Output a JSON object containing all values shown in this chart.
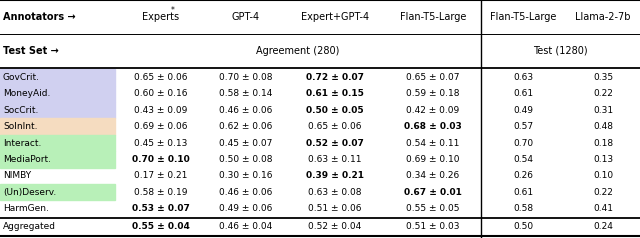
{
  "headers_row1": [
    "Annotators →",
    "Experts*",
    "GPT-4",
    "Expert+GPT-4",
    "Flan-T5-Large",
    "Flan-T5-Large",
    "Llama-2-7b"
  ],
  "headers_row2": [
    "Test Set →",
    "Agreement (280)",
    "",
    "",
    "",
    "Test (1280)",
    ""
  ],
  "rows": [
    {
      "label": "GovCrit.",
      "bg": "#d0d0f0",
      "values": [
        "0.65 ± 0.06",
        "0.70 ± 0.08",
        "0.72 ± 0.07",
        "0.65 ± 0.07",
        "0.63",
        "0.35"
      ],
      "bold": [
        false,
        false,
        true,
        false,
        false,
        false
      ]
    },
    {
      "label": "MoneyAid.",
      "bg": "#d0d0f0",
      "values": [
        "0.60 ± 0.16",
        "0.58 ± 0.14",
        "0.61 ± 0.15",
        "0.59 ± 0.18",
        "0.61",
        "0.22"
      ],
      "bold": [
        false,
        false,
        true,
        false,
        false,
        false
      ]
    },
    {
      "label": "SocCrit.",
      "bg": "#d0d0f0",
      "values": [
        "0.43 ± 0.09",
        "0.46 ± 0.06",
        "0.50 ± 0.05",
        "0.42 ± 0.09",
        "0.49",
        "0.31"
      ],
      "bold": [
        false,
        false,
        true,
        false,
        false,
        false
      ]
    },
    {
      "label": "SolnInt.",
      "bg": "#f5dcc0",
      "values": [
        "0.69 ± 0.06",
        "0.62 ± 0.06",
        "0.65 ± 0.06",
        "0.68 ± 0.03",
        "0.57",
        "0.48"
      ],
      "bold": [
        false,
        false,
        false,
        true,
        false,
        false
      ]
    },
    {
      "label": "Interact.",
      "bg": "#b8f0b8",
      "values": [
        "0.45 ± 0.13",
        "0.45 ± 0.07",
        "0.52 ± 0.07",
        "0.54 ± 0.11",
        "0.70",
        "0.18"
      ],
      "bold": [
        false,
        false,
        true,
        false,
        false,
        false
      ]
    },
    {
      "label": "MediaPort.",
      "bg": "#b8f0b8",
      "values": [
        "0.70 ± 0.10",
        "0.50 ± 0.08",
        "0.63 ± 0.11",
        "0.69 ± 0.10",
        "0.54",
        "0.13"
      ],
      "bold": [
        true,
        false,
        false,
        false,
        false,
        false
      ]
    },
    {
      "label": "NIMBY",
      "bg": "#ffffff",
      "values": [
        "0.17 ± 0.21",
        "0.30 ± 0.16",
        "0.39 ± 0.21",
        "0.34 ± 0.26",
        "0.26",
        "0.10"
      ],
      "bold": [
        false,
        false,
        true,
        false,
        false,
        false
      ]
    },
    {
      "label": "(Un)Deserv.",
      "bg": "#b8f0b8",
      "values": [
        "0.58 ± 0.19",
        "0.46 ± 0.06",
        "0.63 ± 0.08",
        "0.67 ± 0.01",
        "0.61",
        "0.22"
      ],
      "bold": [
        false,
        false,
        false,
        true,
        false,
        false
      ]
    },
    {
      "label": "HarmGen.",
      "bg": "#ffffff",
      "values": [
        "0.53 ± 0.07",
        "0.49 ± 0.06",
        "0.51 ± 0.06",
        "0.55 ± 0.05",
        "0.58",
        "0.41"
      ],
      "bold": [
        true,
        false,
        false,
        false,
        false,
        false
      ]
    }
  ],
  "footer": {
    "label": "Aggregated",
    "values": [
      "0.55 ± 0.04",
      "0.46 ± 0.04",
      "0.52 ± 0.04",
      "0.51 ± 0.03",
      "0.50",
      "0.24"
    ],
    "bold": [
      true,
      false,
      false,
      false,
      false,
      false
    ]
  },
  "figsize": [
    6.4,
    2.38
  ],
  "dpi": 100
}
